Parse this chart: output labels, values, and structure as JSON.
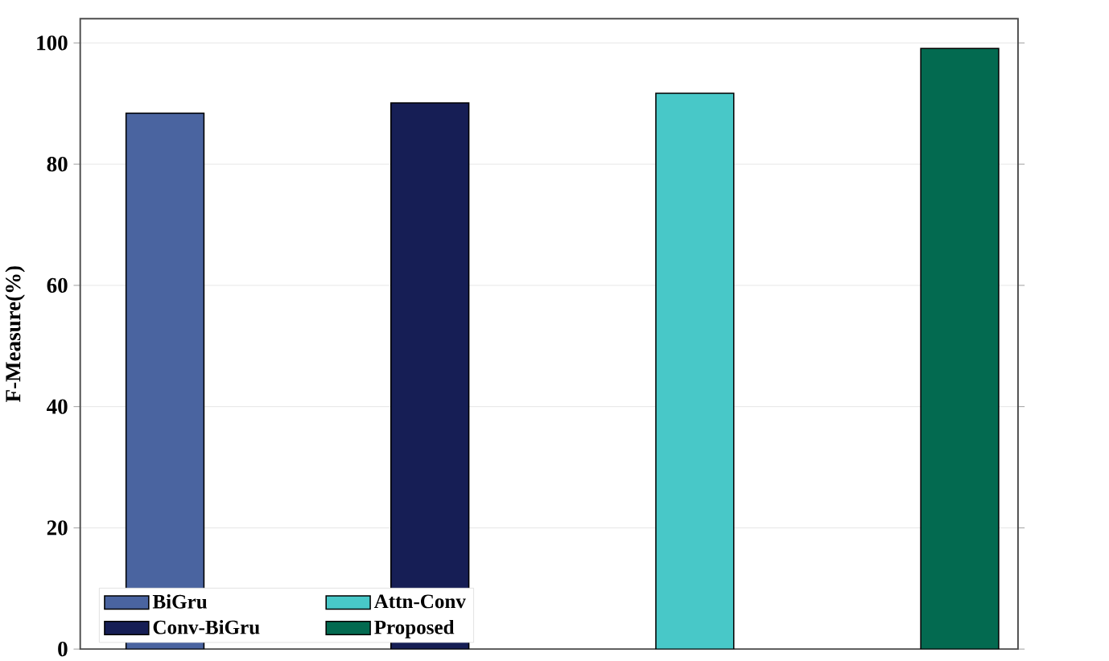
{
  "chart_data": {
    "type": "bar",
    "ylabel": "F-Measure(%)",
    "categories": [
      null,
      null,
      null,
      null
    ],
    "series": [
      {
        "name": "BiGru",
        "color": "#4a64a0",
        "values": [
          88.4,
          null,
          null,
          null
        ]
      },
      {
        "name": "Conv-BiGru",
        "color": "#161e55",
        "values": [
          null,
          90.1,
          null,
          null
        ]
      },
      {
        "name": "Attn-Conv",
        "color": "#48c8c8",
        "values": [
          null,
          null,
          91.7,
          null
        ]
      },
      {
        "name": "Proposed",
        "color": "#036a50",
        "values": [
          null,
          null,
          null,
          99.1
        ]
      }
    ],
    "ylim": [
      0,
      104
    ],
    "yticks": [
      0,
      20,
      40,
      60,
      80,
      100
    ],
    "grid": "y",
    "legend": "bottom left"
  }
}
